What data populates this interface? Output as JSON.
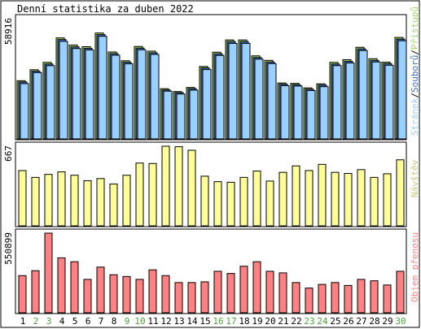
{
  "title": "Denní statistika za duben 2022",
  "colors": {
    "background": "#ffffff",
    "frame": "#000000",
    "hits": "#9ad0ff",
    "files": "#3f6fc6",
    "pages": "#a6d46a",
    "visits": "#ffff99",
    "kbytes": "#ff8080",
    "weekend": "#4ea23a",
    "text": "#000000"
  },
  "days": [
    "1",
    "2",
    "3",
    "4",
    "5",
    "6",
    "7",
    "8",
    "9",
    "10",
    "11",
    "12",
    "13",
    "14",
    "15",
    "16",
    "17",
    "18",
    "19",
    "20",
    "21",
    "22",
    "23",
    "24",
    "25",
    "26",
    "27",
    "28",
    "29",
    "30"
  ],
  "weekend_days": [
    "2",
    "3",
    "9",
    "10",
    "16",
    "17",
    "23",
    "24",
    "30"
  ],
  "legend": {
    "top": {
      "hits": "Stránek",
      "sep1": "/",
      "files": "Souborů",
      "sep2": "/",
      "pages": "Přístupů"
    },
    "middle": "Návštěv",
    "bottom": "Objem přenosu"
  },
  "chart_data": [
    {
      "type": "bar",
      "panel": "top",
      "title": "Denní statistika za duben 2022",
      "categories": [
        "1",
        "2",
        "3",
        "4",
        "5",
        "6",
        "7",
        "8",
        "9",
        "10",
        "11",
        "12",
        "13",
        "14",
        "15",
        "16",
        "17",
        "18",
        "19",
        "20",
        "21",
        "22",
        "23",
        "24",
        "25",
        "26",
        "27",
        "28",
        "29",
        "30"
      ],
      "ymax_label": "58916",
      "ylim": [
        0,
        58916
      ],
      "series": [
        {
          "name": "Přístupů",
          "values": [
            28500,
            33900,
            37500,
            49500,
            46000,
            45200,
            51900,
            42600,
            38300,
            45300,
            43000,
            24600,
            23200,
            25200,
            35500,
            42500,
            48500,
            48500,
            40700,
            38500,
            27400,
            27200,
            25000,
            27000,
            37500,
            38800,
            44900,
            39300,
            37600,
            49700
          ]
        },
        {
          "name": "Souborů",
          "values": [
            27900,
            33200,
            36700,
            48700,
            45100,
            44400,
            51100,
            41800,
            37600,
            44500,
            42200,
            24000,
            22700,
            24600,
            34800,
            41700,
            47700,
            47700,
            39900,
            37700,
            26800,
            26600,
            24400,
            26400,
            36700,
            38000,
            44100,
            38500,
            36900,
            48900
          ]
        },
        {
          "name": "Stránek",
          "values": [
            27100,
            32500,
            35900,
            47800,
            44300,
            43600,
            50300,
            41000,
            36800,
            43700,
            41400,
            23400,
            22000,
            23900,
            34000,
            40900,
            46800,
            46800,
            39100,
            36900,
            26100,
            25900,
            23700,
            25600,
            35900,
            37200,
            43300,
            37700,
            36100,
            48100
          ]
        }
      ]
    },
    {
      "type": "bar",
      "panel": "middle",
      "categories": [
        "1",
        "2",
        "3",
        "4",
        "5",
        "6",
        "7",
        "8",
        "9",
        "10",
        "11",
        "12",
        "13",
        "14",
        "15",
        "16",
        "17",
        "18",
        "19",
        "20",
        "21",
        "22",
        "23",
        "24",
        "25",
        "26",
        "27",
        "28",
        "29",
        "30"
      ],
      "ymax_label": "667",
      "ylim": [
        0,
        667
      ],
      "series": [
        {
          "name": "Návštěv",
          "values": [
            463,
            406,
            431,
            452,
            424,
            378,
            396,
            350,
            424,
            526,
            522,
            667,
            663,
            633,
            416,
            370,
            365,
            406,
            459,
            375,
            448,
            502,
            463,
            515,
            448,
            439,
            471,
            406,
            436,
            553
          ]
        }
      ]
    },
    {
      "type": "bar",
      "panel": "bottom",
      "categories": [
        "1",
        "2",
        "3",
        "4",
        "5",
        "6",
        "7",
        "8",
        "9",
        "10",
        "11",
        "12",
        "13",
        "14",
        "15",
        "16",
        "17",
        "18",
        "19",
        "20",
        "21",
        "22",
        "23",
        "24",
        "25",
        "26",
        "27",
        "28",
        "29",
        "30"
      ],
      "ymax_label": "550899",
      "ylim": [
        0,
        550899
      ],
      "series": [
        {
          "name": "Objem přenosu",
          "values": [
            257000,
            291000,
            550899,
            380000,
            353000,
            231000,
            316000,
            263000,
            251000,
            231000,
            297000,
            257000,
            209000,
            209000,
            214000,
            287000,
            272000,
            322000,
            353000,
            287000,
            276000,
            209000,
            171000,
            196000,
            209000,
            189000,
            231000,
            221000,
            192000,
            287000
          ]
        }
      ]
    }
  ]
}
